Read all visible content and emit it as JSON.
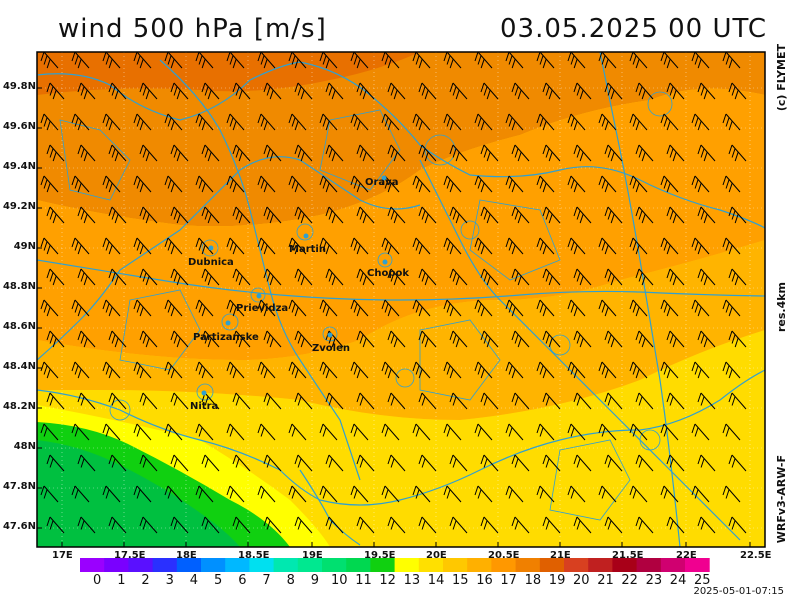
{
  "header": {
    "title": "wind 500 hPa [m/s]",
    "datetime": "03.05.2025   00 UTC"
  },
  "side_labels": {
    "top": "(c) FLYMET",
    "middle": "res.4km",
    "bottom": "WRFv3-ARW-F"
  },
  "axes": {
    "lat_labels": [
      "49.8N",
      "49.6N",
      "49.4N",
      "49.2N",
      "49N",
      "48.8N",
      "48.6N",
      "48.4N",
      "48.2N",
      "48N",
      "47.8N",
      "47.6N"
    ],
    "lon_labels": [
      "17E",
      "17.5E",
      "18E",
      "18.5E",
      "19E",
      "19.5E",
      "20E",
      "20.5E",
      "21E",
      "21.5E",
      "22E",
      "22.5E"
    ]
  },
  "cities": [
    {
      "name": "Orava"
    },
    {
      "name": "Martin"
    },
    {
      "name": "Dubnica"
    },
    {
      "name": "Chopok"
    },
    {
      "name": "Prievidza"
    },
    {
      "name": "Partizanske"
    },
    {
      "name": "Zvolen"
    },
    {
      "name": "Nitra"
    }
  ],
  "color_scale": {
    "values": [
      "0",
      "1",
      "2",
      "3",
      "4",
      "5",
      "6",
      "7",
      "8",
      "9",
      "10",
      "11",
      "12",
      "13",
      "14",
      "15",
      "16",
      "17",
      "18",
      "19",
      "20",
      "21",
      "22",
      "23",
      "24",
      "25"
    ],
    "colors": [
      "#9a00ff",
      "#7a00ff",
      "#5a10ff",
      "#2a30ff",
      "#0060ff",
      "#0090ff",
      "#00b8ff",
      "#00e0f0",
      "#00e8b0",
      "#00e890",
      "#00e070",
      "#00d850",
      "#10d010",
      "#ffff00",
      "#ffe000",
      "#ffc800",
      "#ffb000",
      "#ff9800",
      "#f08000",
      "#e06000",
      "#d84020",
      "#c02020",
      "#a80018",
      "#b00040",
      "#d00070",
      "#f00090"
    ]
  },
  "timestamp": "2025-05-01-07:15"
}
